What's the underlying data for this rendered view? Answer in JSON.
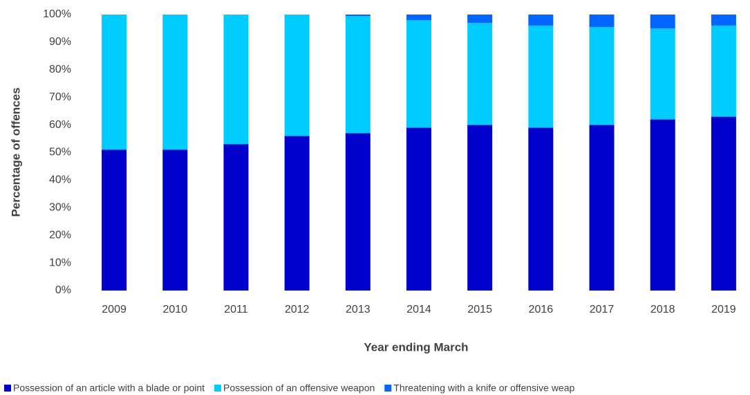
{
  "chart_data": {
    "type": "stacked_bar",
    "x_label": "Year ending March",
    "y_label": "Percentage of offences",
    "categories": [
      "2009",
      "2010",
      "2011",
      "2012",
      "2013",
      "2014",
      "2015",
      "2016",
      "2017",
      "2018",
      "2019"
    ],
    "series": [
      {
        "name": "Possession of an article with a blade or point",
        "color": "#0000cc",
        "values": [
          51,
          51,
          53,
          56,
          57,
          59,
          60,
          59,
          60,
          62,
          63
        ]
      },
      {
        "name": "Possession of an offensive weapon",
        "color": "#00ccff",
        "values": [
          49,
          49,
          47,
          44,
          42.5,
          39,
          37,
          37,
          35.5,
          33,
          33
        ]
      },
      {
        "name": "Threatening with a knife or offensive weap",
        "color": "#0066ff",
        "values": [
          0,
          0,
          0,
          0,
          0.5,
          2,
          3,
          4,
          4.5,
          5,
          4
        ]
      }
    ],
    "ylim": [
      0,
      100
    ],
    "yticks": [
      {
        "value": 0,
        "label": "0%"
      },
      {
        "value": 10,
        "label": "10%"
      },
      {
        "value": 20,
        "label": "20%"
      },
      {
        "value": 30,
        "label": "30%"
      },
      {
        "value": 40,
        "label": "40%"
      },
      {
        "value": 50,
        "label": "50%"
      },
      {
        "value": 60,
        "label": "60%"
      },
      {
        "value": 70,
        "label": "70%"
      },
      {
        "value": 80,
        "label": "80%"
      },
      {
        "value": 90,
        "label": "90%"
      },
      {
        "value": 100,
        "label": "100%"
      }
    ],
    "legend": "bottom"
  }
}
